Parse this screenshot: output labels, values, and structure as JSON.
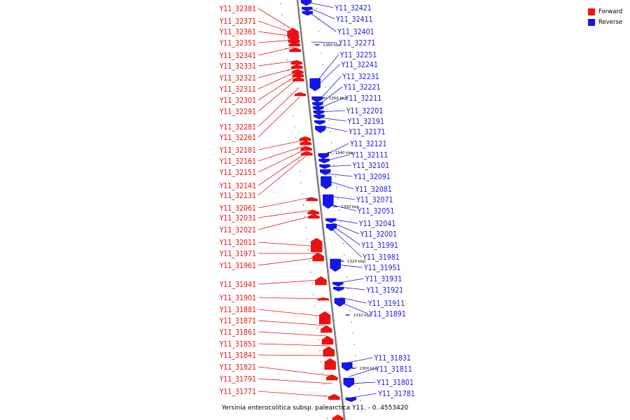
{
  "colors": {
    "forward": "#ee1111",
    "reverse": "#1515ee",
    "backbone": "#888888"
  },
  "legend": [
    {
      "label": "Forward",
      "color": "#ee1111"
    },
    {
      "label": "Reverse",
      "color": "#1515ee"
    }
  ],
  "caption": "Yersinia enterocolitica subsp. palearctica Y11. - 0..4553420",
  "ruler": [
    "1360 kbp",
    "1350 kbp",
    "1340 kbp",
    "1330 kbp",
    "1320 kbp",
    "1310 kbp",
    "1300 kbp"
  ],
  "forward_genes": [
    "Y11_32381",
    "Y11_32371",
    "Y11_32361",
    "Y11_32351",
    "Y11_32341",
    "Y11_32331",
    "Y11_32321",
    "Y11_32311",
    "Y11_32301",
    "Y11_32291",
    "Y11_32281",
    "Y11_32261",
    "Y11_32181",
    "Y11_32161",
    "Y11_32151",
    "Y11_32141",
    "Y11_32131",
    "Y11_32061",
    "Y11_32031",
    "Y11_32021",
    "Y11_32011",
    "Y11_31971",
    "Y11_31961",
    "Y11_31941",
    "Y11_31901",
    "Y11_31881",
    "Y11_31871",
    "Y11_31861",
    "Y11_31851",
    "Y11_31841",
    "Y11_31821",
    "Y11_31791",
    "Y11_31771"
  ],
  "reverse_genes": [
    "Y11_32421",
    "Y11_32411",
    "Y11_32401",
    "Y11_32271",
    "Y11_32251",
    "Y11_32241",
    "Y11_32231",
    "Y11_32221",
    "Y11_32211",
    "Y11_32201",
    "Y11_32191",
    "Y11_32171",
    "Y11_32121",
    "Y11_32111",
    "Y11_32101",
    "Y11_32091",
    "Y11_32081",
    "Y11_32071",
    "Y11_32051",
    "Y11_32041",
    "Y11_32001",
    "Y11_31991",
    "Y11_31981",
    "Y11_31951",
    "Y11_31931",
    "Y11_31921",
    "Y11_31911",
    "Y11_31891",
    "Y11_31831",
    "Y11_31811",
    "Y11_31801",
    "Y11_31781"
  ]
}
